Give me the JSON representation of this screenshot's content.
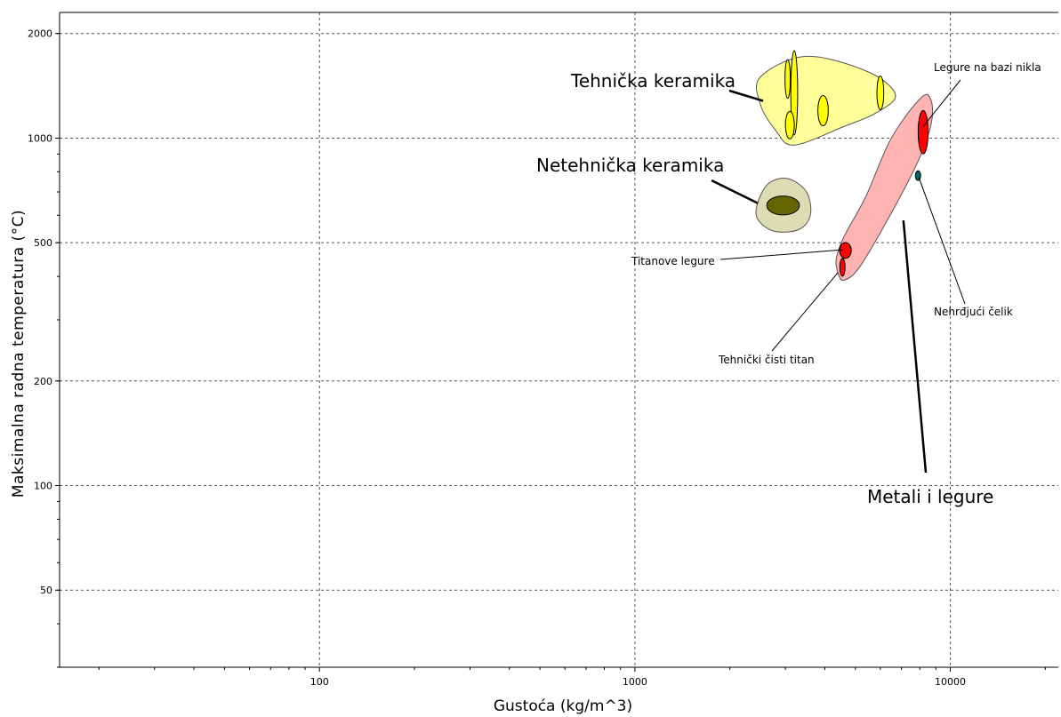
{
  "chart_data": {
    "type": "scatter",
    "xlabel": "Gustoća (kg/m^3)",
    "ylabel": "Maksimalna radna temperatura (°C)",
    "x_scale": "log",
    "y_scale": "log",
    "xlim": [
      15,
      22000
    ],
    "ylim": [
      30,
      2300
    ],
    "x_ticks": [
      {
        "value": 100,
        "label": "100"
      },
      {
        "value": 1000,
        "label": "1000"
      },
      {
        "value": 10000,
        "label": "10000"
      }
    ],
    "y_ticks": [
      {
        "value": 50,
        "label": "50"
      },
      {
        "value": 100,
        "label": "100"
      },
      {
        "value": 200,
        "label": "200"
      },
      {
        "value": 500,
        "label": "500"
      },
      {
        "value": 1000,
        "label": "1000"
      },
      {
        "value": 2000,
        "label": "2000"
      }
    ],
    "grid": true,
    "groups": [
      {
        "name": "Tehnička keramika",
        "envelope_color": "#ffff99",
        "envelope": [
          [
            2500,
            1500
          ],
          [
            3500,
            1720
          ],
          [
            5500,
            1550
          ],
          [
            6700,
            1330
          ],
          [
            5800,
            1180
          ],
          [
            4600,
            1080
          ],
          [
            3200,
            955
          ],
          [
            2800,
            1050
          ],
          [
            2500,
            1250
          ]
        ],
        "materials": [
          {
            "x": 3050,
            "y": 1480,
            "x_range": [
              3000,
              3100
            ],
            "y_range": [
              1300,
              1680
            ],
            "color": "#ffff00"
          },
          {
            "x": 3200,
            "y": 1350,
            "x_range": [
              3120,
              3280
            ],
            "y_range": [
              1000,
              1750
            ],
            "color": "#ffff00"
          },
          {
            "x": 3100,
            "y": 1090,
            "x_range": [
              3000,
              3200
            ],
            "y_range": [
              1000,
              1200
            ],
            "color": "#ffff00"
          },
          {
            "x": 3950,
            "y": 1200,
            "x_range": [
              3800,
              4100
            ],
            "y_range": [
              1080,
              1320
            ],
            "color": "#ffff00"
          },
          {
            "x": 6000,
            "y": 1350,
            "x_range": [
              5850,
              6150
            ],
            "y_range": [
              1200,
              1500
            ],
            "color": "#ffff00"
          }
        ]
      },
      {
        "name": "Netehnička keramika",
        "envelope_color": "#ddddb3",
        "envelope": [
          [
            2450,
            650
          ],
          [
            2650,
            740
          ],
          [
            3050,
            765
          ],
          [
            3500,
            700
          ],
          [
            3600,
            600
          ],
          [
            3300,
            545
          ],
          [
            2750,
            540
          ],
          [
            2450,
            585
          ]
        ],
        "materials": [
          {
            "x": 2950,
            "y": 640,
            "x_range": [
              2600,
              3300
            ],
            "y_range": [
              600,
              680
            ],
            "color": "#666600"
          }
        ]
      },
      {
        "name": "Metali i legure",
        "envelope_color": "#ffb3b3",
        "envelope": [
          [
            4400,
            410
          ],
          [
            4600,
            390
          ],
          [
            5200,
            430
          ],
          [
            6700,
            640
          ],
          [
            8000,
            880
          ],
          [
            8700,
            1100
          ],
          [
            8700,
            1280
          ],
          [
            8100,
            1310
          ],
          [
            6500,
            1000
          ],
          [
            5400,
            680
          ],
          [
            4600,
            520
          ],
          [
            4350,
            450
          ]
        ],
        "materials": [
          {
            "name": "Legure na bazi nikla",
            "x": 8200,
            "y": 1040,
            "x_range": [
              7900,
              8500
            ],
            "y_range": [
              900,
              1200
            ],
            "color": "#ff0000"
          },
          {
            "name": "Nehrđjući čelik",
            "x": 7900,
            "y": 780,
            "x_range": [
              7750,
              8050
            ],
            "y_range": [
              755,
              805
            ],
            "color": "#006666"
          },
          {
            "name": "Titanove legure",
            "x": 4650,
            "y": 475,
            "x_range": [
              4450,
              4850
            ],
            "y_range": [
              450,
              500
            ],
            "color": "#ff0000"
          },
          {
            "name": "Tehnički čisti titan",
            "x": 4550,
            "y": 425,
            "x_range": [
              4480,
              4620
            ],
            "y_range": [
              400,
              450
            ],
            "color": "#ff0000"
          }
        ]
      }
    ],
    "annotations": [
      {
        "text": "Tehnička keramika",
        "size": "large",
        "target_x": 2550,
        "target_y": 1280
      },
      {
        "text": "Netehnička keramika",
        "size": "large",
        "target_x": 2450,
        "target_y": 650
      },
      {
        "text": "Metali i legure",
        "size": "large",
        "target_x": 7100,
        "target_y": 580
      },
      {
        "text": "Legure na bazi nikla",
        "size": "small",
        "target_x": 8200,
        "target_y": 1080
      },
      {
        "text": "Nehrđjući čelik",
        "size": "small",
        "target_x": 7950,
        "target_y": 770
      },
      {
        "text": "Titanove legure",
        "size": "small",
        "target_x": 4550,
        "target_y": 477
      },
      {
        "text": "Tehnički čisti titan",
        "size": "small",
        "target_x": 4400,
        "target_y": 410
      }
    ]
  }
}
